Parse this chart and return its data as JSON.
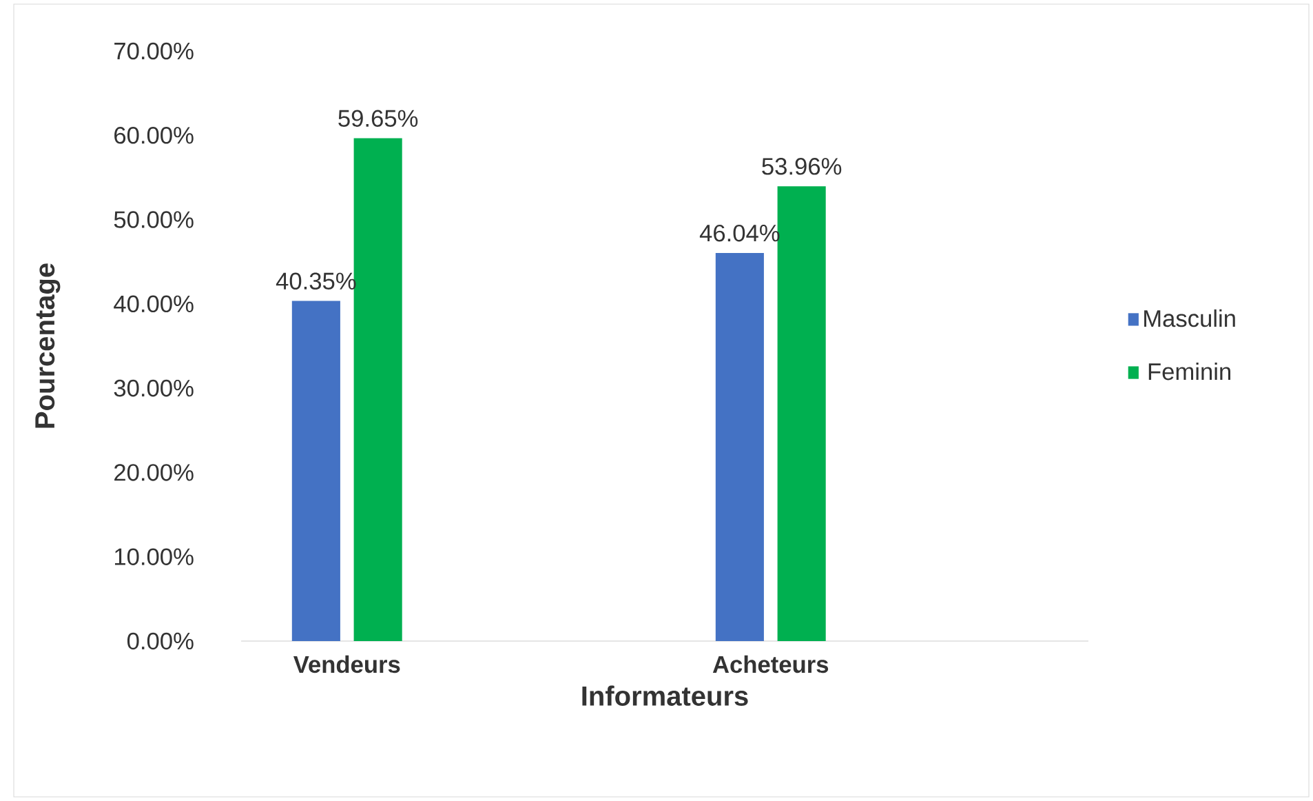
{
  "chart_data": {
    "type": "bar",
    "xlabel": "Informateurs",
    "ylabel": "Pourcentage",
    "categories": [
      "Vendeurs",
      "Acheteurs"
    ],
    "series": [
      {
        "name": "Masculin",
        "color": "#4472c4",
        "values": [
          40.35,
          46.04
        ],
        "value_labels": [
          "40.35%",
          "46.04%"
        ]
      },
      {
        "name": "Feminin",
        "color": "#00b050",
        "values": [
          59.65,
          53.96
        ],
        "value_labels": [
          "59.65%",
          "53.96%"
        ]
      }
    ],
    "ylim": [
      0,
      70
    ],
    "yticks": [
      {
        "value": 0,
        "label": "0.00%"
      },
      {
        "value": 10,
        "label": "10.00%"
      },
      {
        "value": 20,
        "label": "20.00%"
      },
      {
        "value": 30,
        "label": "30.00%"
      },
      {
        "value": 40,
        "label": "40.00%"
      },
      {
        "value": 50,
        "label": "50.00%"
      },
      {
        "value": 60,
        "label": "60.00%"
      },
      {
        "value": 70,
        "label": "70.00%"
      }
    ],
    "grid": false,
    "legend": "right"
  }
}
